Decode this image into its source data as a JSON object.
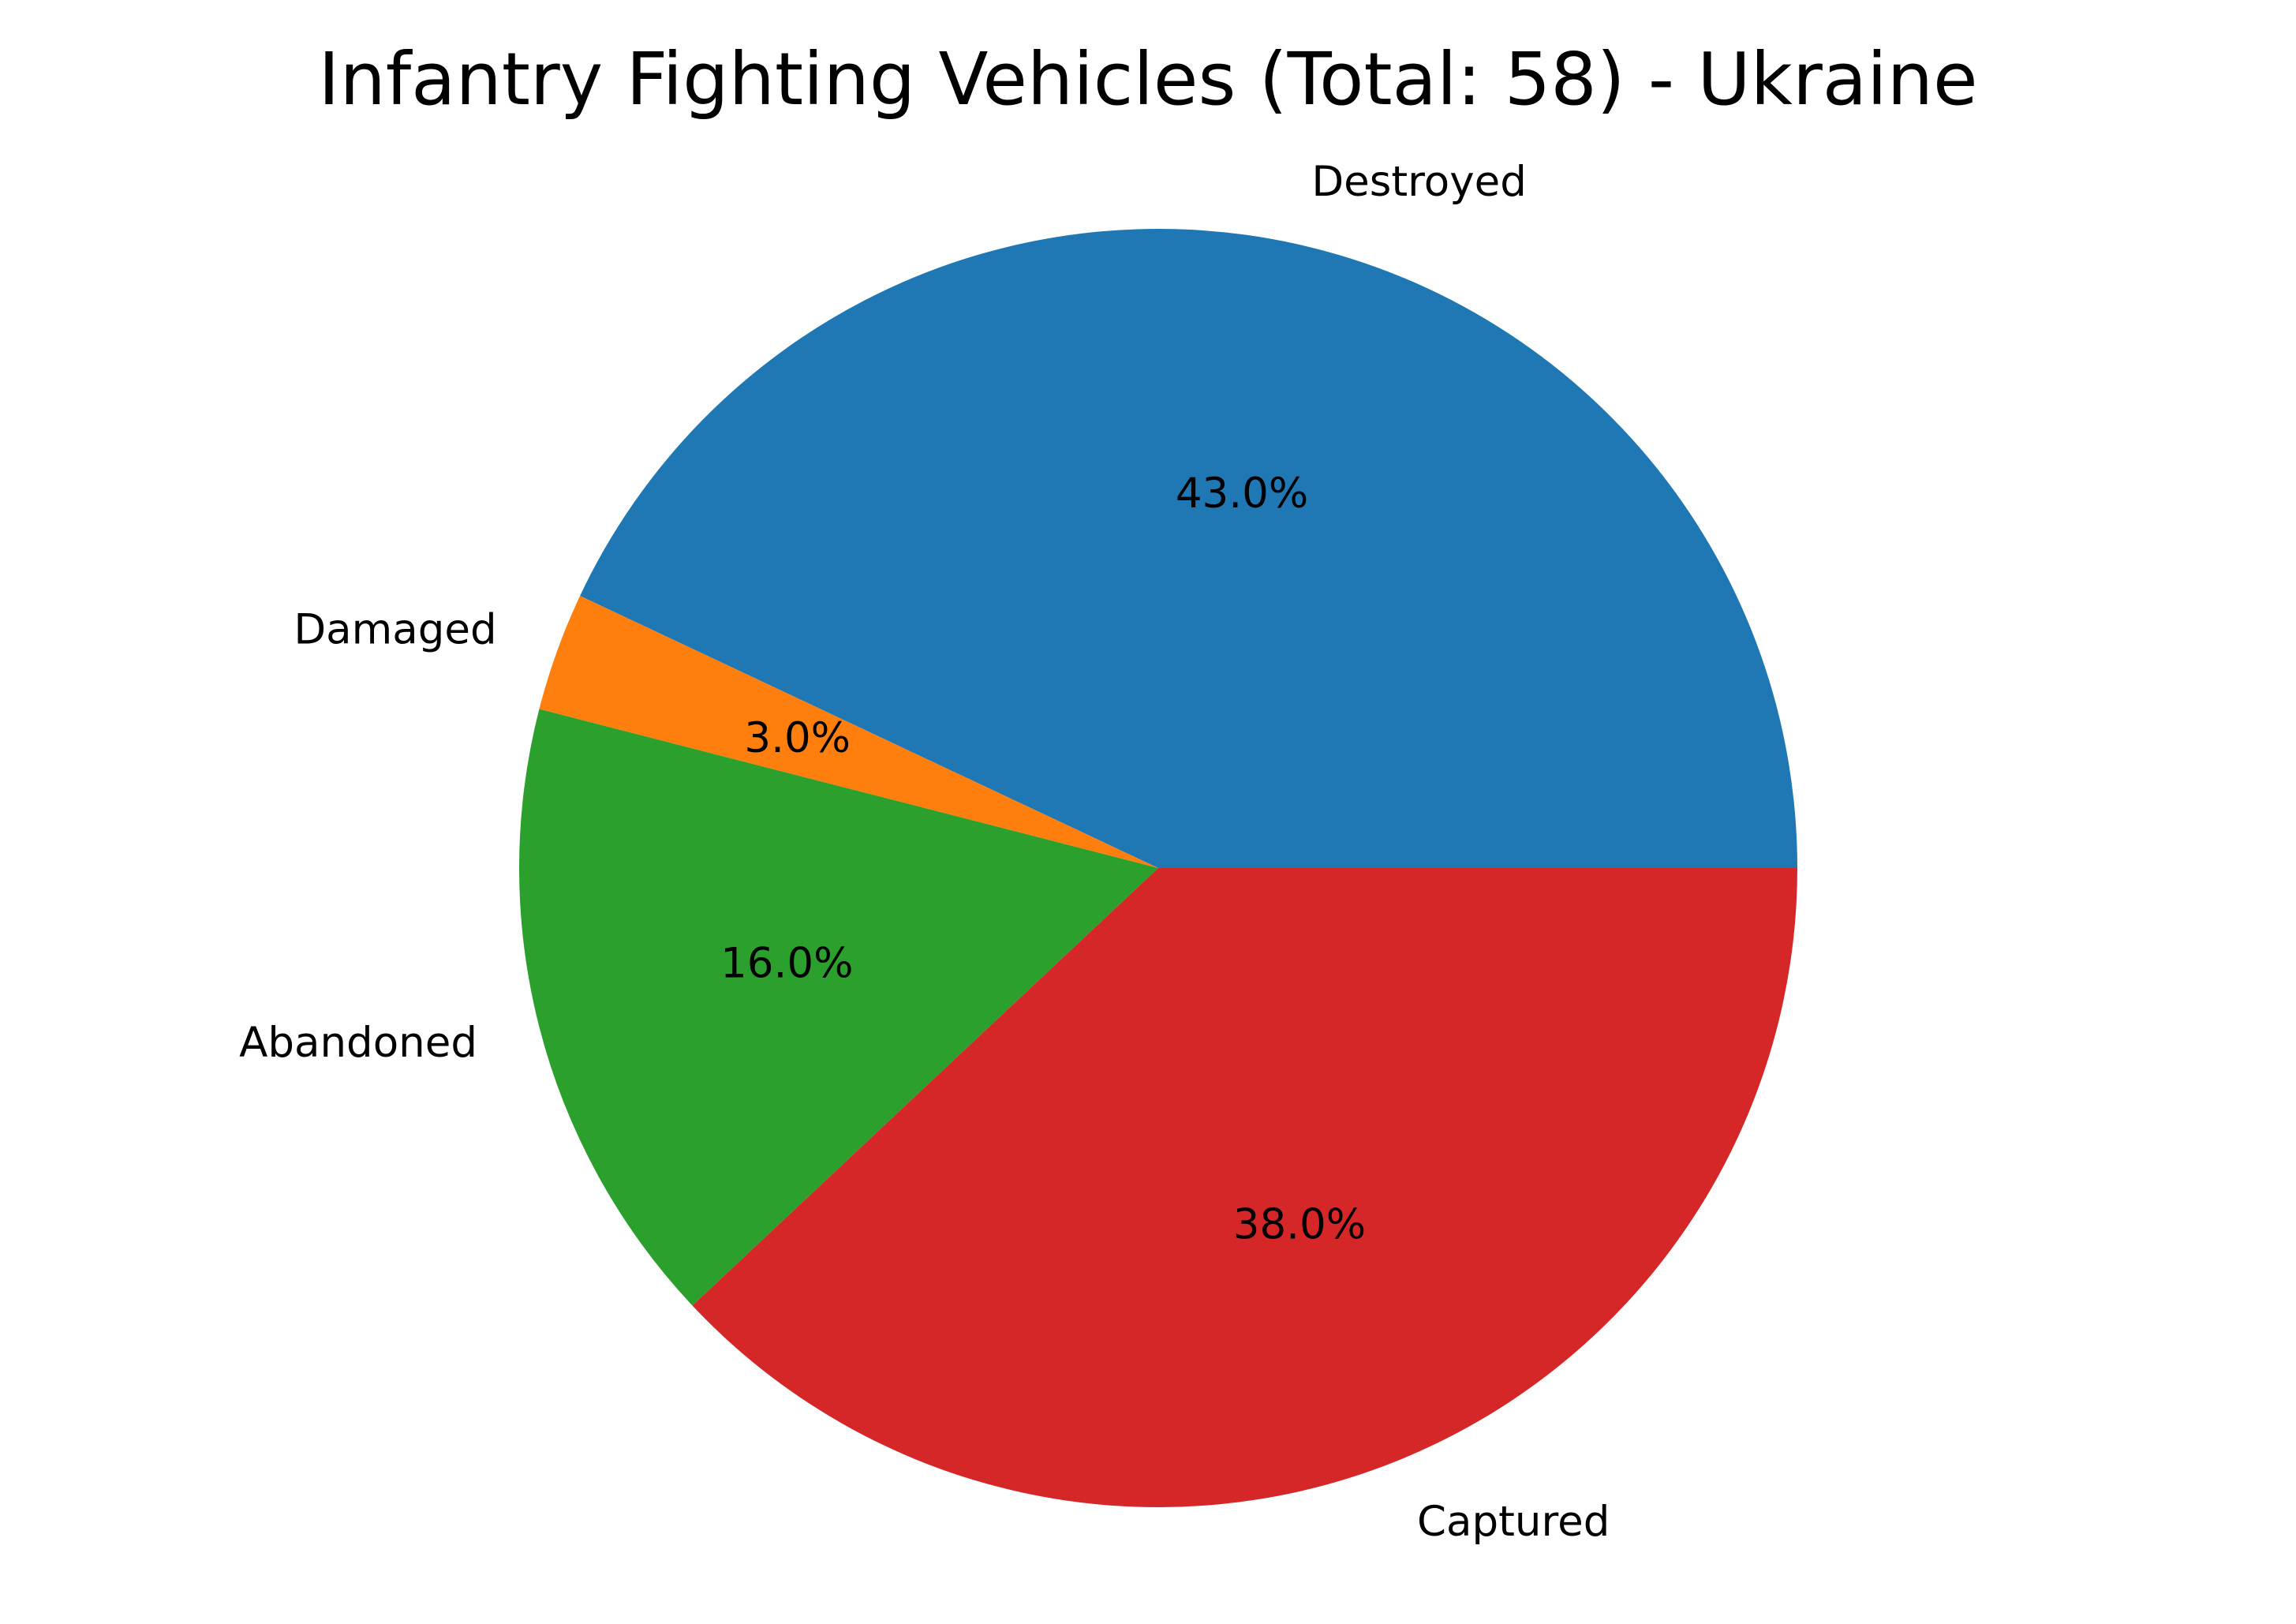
{
  "chart_data": {
    "type": "pie",
    "title": "Infantry Fighting Vehicles (Total: 58) - Ukraine",
    "start_angle_deg": 0,
    "direction": "counterclockwise",
    "slices": [
      {
        "label": "Destroyed",
        "value": 43.0,
        "pct_label": "43.0%",
        "color": "#1f77b4"
      },
      {
        "label": "Damaged",
        "value": 3.0,
        "pct_label": "3.0%",
        "color": "#ff7f0e"
      },
      {
        "label": "Abandoned",
        "value": 16.0,
        "pct_label": "16.0%",
        "color": "#2ca02c"
      },
      {
        "label": "Captured",
        "value": 38.0,
        "pct_label": "38.0%",
        "color": "#d62728"
      }
    ]
  }
}
